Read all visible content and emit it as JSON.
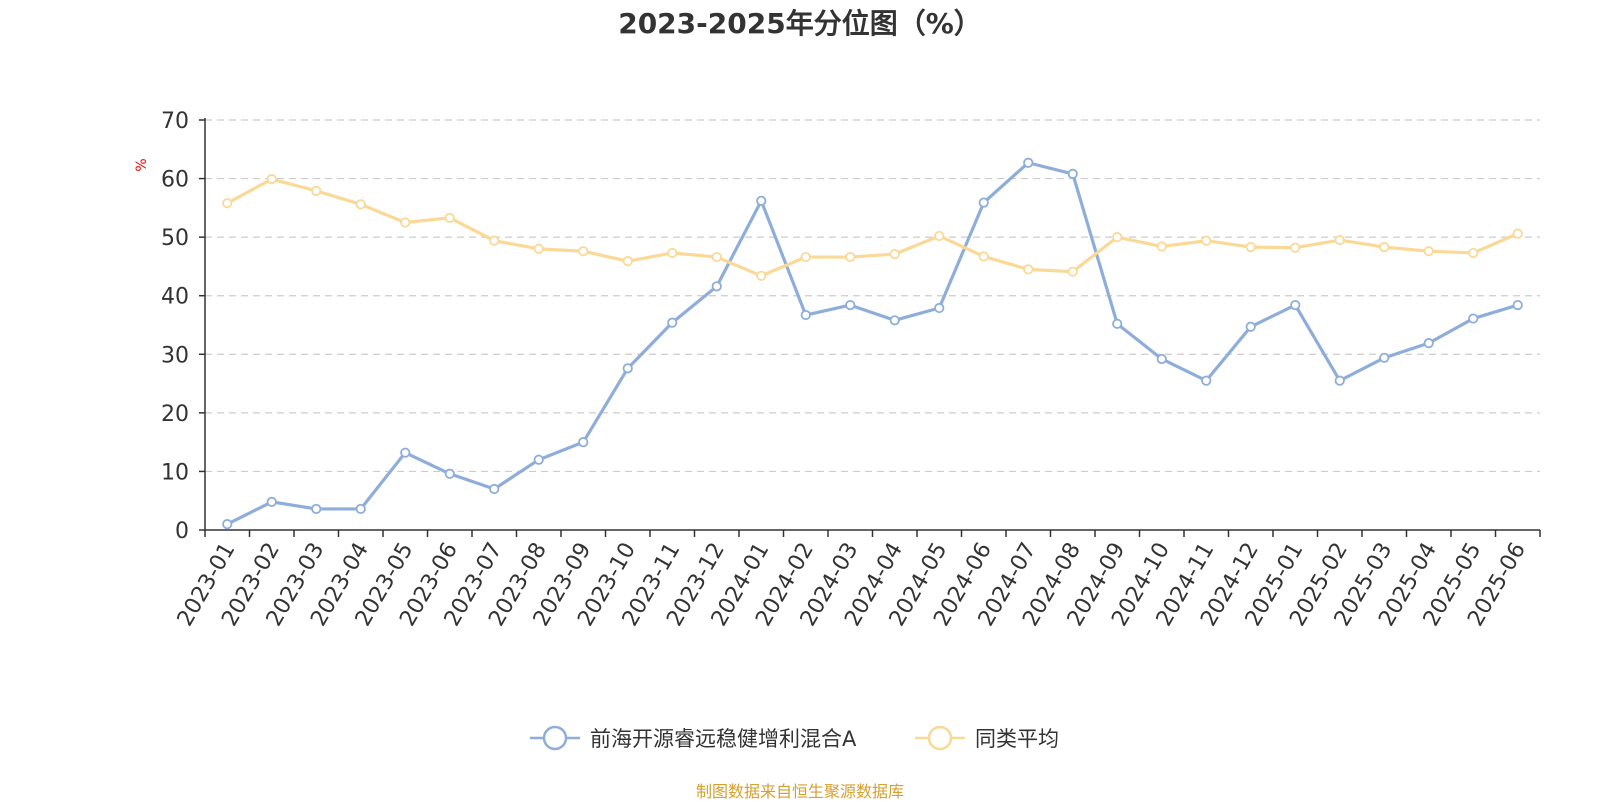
{
  "chart_data": {
    "type": "line",
    "title": "2023-2025年分位图（%）",
    "ylabel": "%",
    "xlabel": "",
    "ylim": [
      0,
      70
    ],
    "yticks": [
      0,
      10,
      20,
      30,
      40,
      50,
      60,
      70
    ],
    "grid": true,
    "legend_position": "bottom",
    "categories": [
      "2023-01",
      "2023-02",
      "2023-03",
      "2023-04",
      "2023-05",
      "2023-06",
      "2023-07",
      "2023-08",
      "2023-09",
      "2023-10",
      "2023-11",
      "2023-12",
      "2024-01",
      "2024-02",
      "2024-03",
      "2024-04",
      "2024-05",
      "2024-06",
      "2024-07",
      "2024-08",
      "2024-09",
      "2024-10",
      "2024-11",
      "2024-12",
      "2025-01",
      "2025-02",
      "2025-03",
      "2025-04",
      "2025-05",
      "2025-06"
    ],
    "series": [
      {
        "name": "前海开源睿远稳健增利混合A",
        "color": "#8eaed9",
        "values": [
          1.0,
          4.8,
          3.6,
          3.6,
          13.2,
          9.6,
          7.0,
          12.0,
          15.0,
          27.6,
          35.4,
          41.6,
          56.2,
          36.7,
          38.4,
          35.8,
          37.9,
          55.9,
          62.7,
          60.8,
          35.2,
          29.2,
          25.5,
          34.7,
          38.4,
          25.5,
          29.4,
          31.9,
          36.1,
          38.4
        ]
      },
      {
        "name": "同类平均",
        "color": "#fad996",
        "values": [
          55.8,
          59.9,
          57.9,
          55.6,
          52.5,
          53.3,
          49.4,
          48.0,
          47.6,
          45.9,
          47.3,
          46.6,
          43.4,
          46.6,
          46.6,
          47.1,
          50.2,
          46.7,
          44.5,
          44.1,
          50.0,
          48.4,
          49.4,
          48.3,
          48.2,
          49.5,
          48.3,
          47.6,
          47.3,
          50.6
        ]
      }
    ]
  },
  "source_note": "制图数据来自恒生聚源数据库"
}
